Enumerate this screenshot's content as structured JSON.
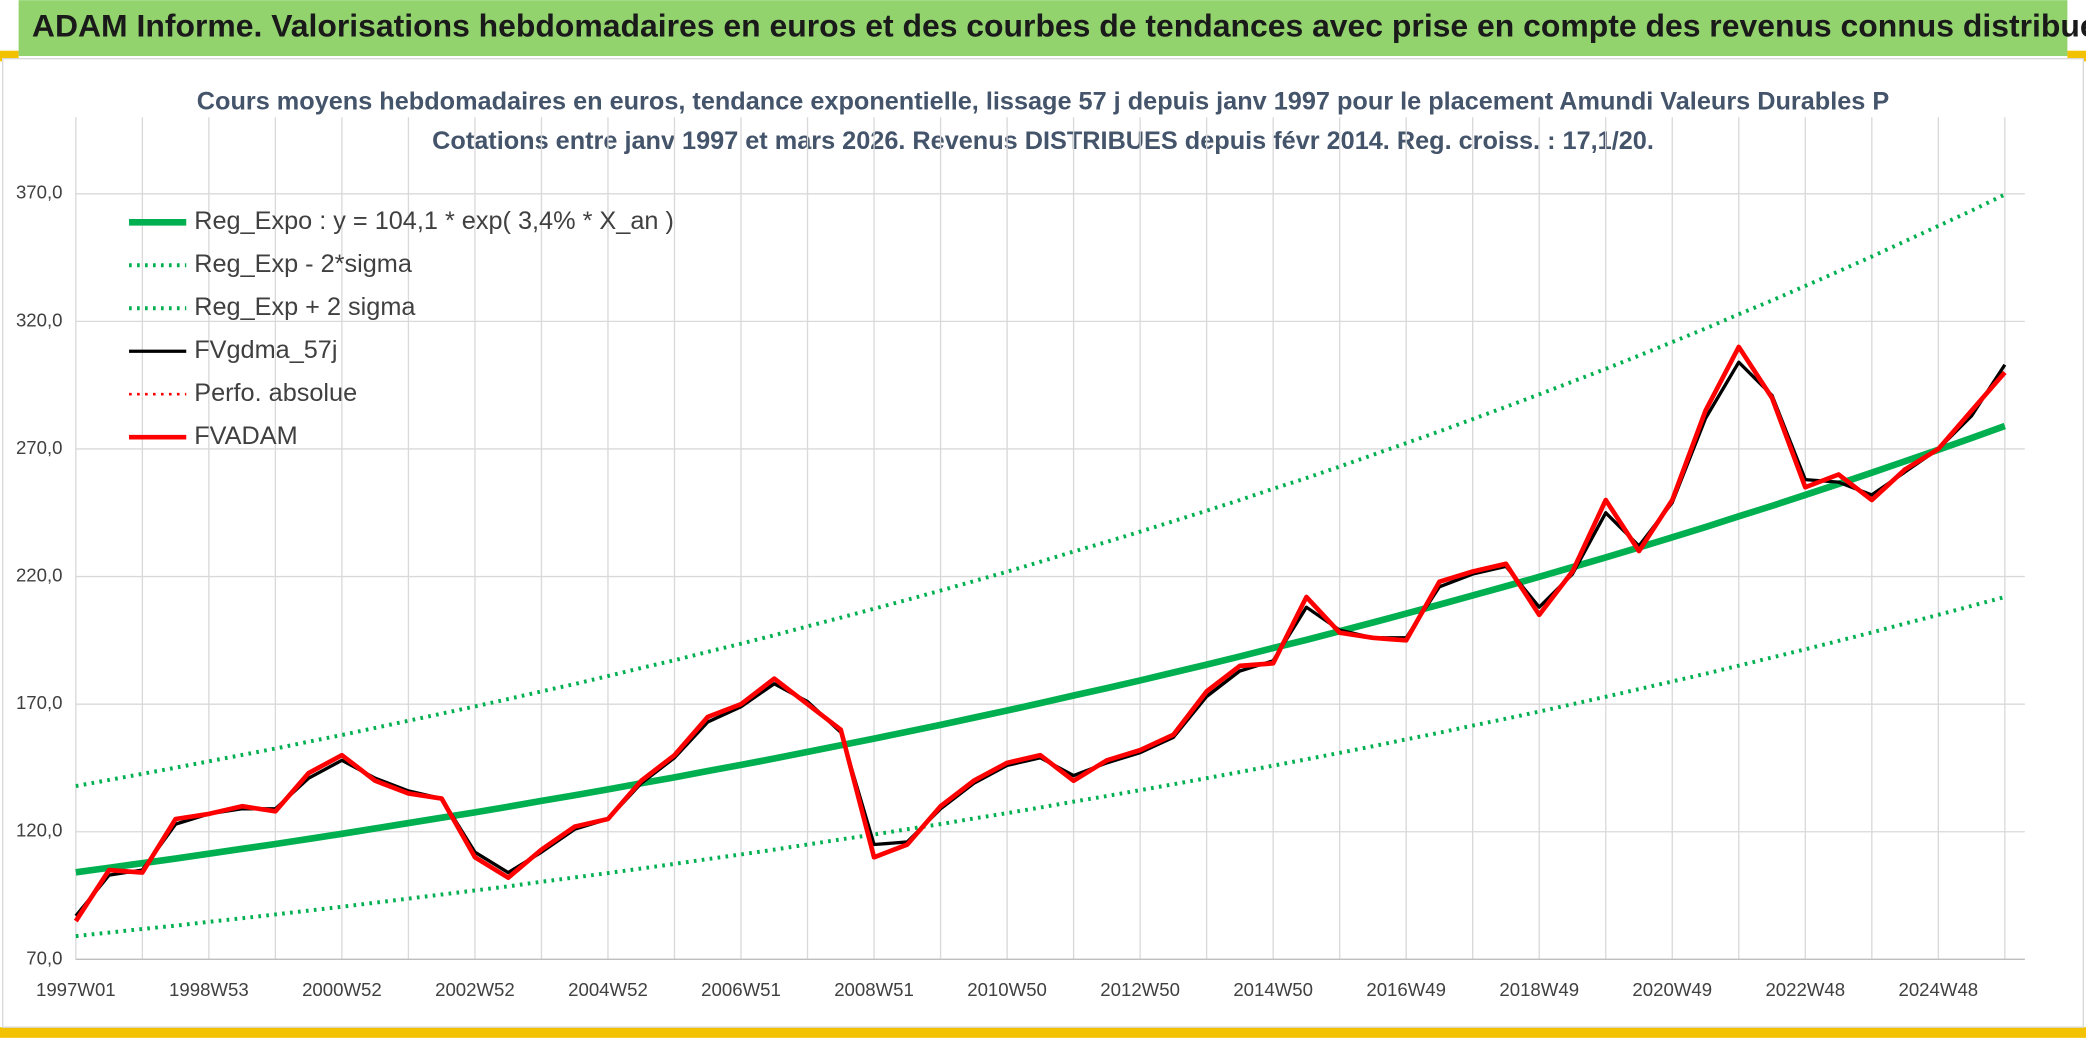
{
  "chart_data": {
    "type": "line",
    "header": "ADAM Informe. Valorisations hebdomadaires en euros et des courbes de tendances avec prise en compte des revenus connus distribués",
    "title": "Cours moyens hebdomadaires en euros, tendance exponentielle, lissage 57 j depuis janv 1997 pour le placement Amundi Valeurs Durables P",
    "subtitle": "Cotations entre janv 1997 et mars 2026. Revenus DISTRIBUES depuis févr 2014. Reg. croiss. : 17,1/20.",
    "categories": [
      "1997W01",
      null,
      null,
      null,
      "1998W53",
      null,
      null,
      null,
      "2000W52",
      null,
      null,
      null,
      "2002W52",
      null,
      null,
      null,
      "2004W52",
      null,
      null,
      null,
      "2006W51",
      null,
      null,
      null,
      "2008W51",
      null,
      null,
      null,
      "2010W50",
      null,
      null,
      null,
      "2012W50",
      null,
      null,
      null,
      "2014W50",
      null,
      null,
      null,
      "2016W49",
      null,
      null,
      null,
      "2018W49",
      null,
      null,
      null,
      "2020W49",
      null,
      null,
      null,
      "2022W48",
      null,
      null,
      null,
      "2024W48",
      null,
      null
    ],
    "ylim": [
      70,
      400
    ],
    "yticks": [
      {
        "value": 70,
        "label": "70,0"
      },
      {
        "value": 120,
        "label": "120,0"
      },
      {
        "value": 170,
        "label": "170,0"
      },
      {
        "value": 220,
        "label": "220,0"
      },
      {
        "value": 270,
        "label": "270,0"
      },
      {
        "value": 320,
        "label": "320,0"
      },
      {
        "value": 370,
        "label": "370,0"
      }
    ],
    "grid": true,
    "legend": "upper left",
    "series": [
      {
        "name": "Reg_Expo : y = 104,1 * exp( 3,4% *  X_an )",
        "color": "#00b050",
        "dash": "solid",
        "width": 5,
        "values": [
          104.1,
          105.9,
          107.7,
          109.5,
          111.4,
          113.3,
          115.2,
          117.2,
          119.2,
          121.3,
          123.4,
          125.5,
          127.6,
          129.8,
          132.1,
          134.3,
          136.6,
          139.0,
          141.3,
          143.8,
          146.2,
          148.7,
          151.3,
          153.9,
          156.5,
          159.2,
          161.9,
          164.7,
          167.5,
          170.4,
          173.4,
          176.3,
          179.3,
          182.4,
          185.5,
          188.7,
          192.0,
          195.2,
          198.6,
          202.0,
          205.5,
          209.0,
          212.6,
          216.2,
          219.9,
          223.7,
          227.5,
          231.4,
          235.4,
          239.4,
          243.6,
          247.7,
          252.0,
          256.3,
          260.7,
          265.2,
          269.7,
          274.3,
          279.0
        ]
      },
      {
        "name": "Reg_Exp - 2*sigma",
        "color": "#00b050",
        "dash": "dotted",
        "width": 3,
        "values": [
          79.1,
          80.5,
          81.9,
          83.2,
          84.7,
          86.1,
          87.6,
          89.1,
          90.6,
          92.2,
          93.8,
          95.4,
          97.0,
          98.6,
          100.4,
          102.1,
          103.8,
          105.6,
          107.4,
          109.3,
          111.1,
          113.0,
          115.0,
          117.0,
          118.9,
          121.0,
          123.0,
          125.2,
          127.3,
          129.5,
          131.8,
          134.0,
          136.3,
          138.6,
          141.0,
          143.4,
          145.9,
          148.4,
          150.9,
          153.5,
          156.2,
          158.8,
          161.6,
          164.3,
          167.1,
          170.0,
          172.9,
          175.9,
          178.9,
          181.9,
          185.1,
          188.3,
          191.5,
          194.8,
          198.1,
          201.6,
          205.0,
          208.5,
          212.0
        ]
      },
      {
        "name": "Reg_Exp + 2 sigma",
        "color": "#00b050",
        "dash": "dotted",
        "width": 3,
        "values": [
          137.9,
          140.3,
          142.7,
          145.1,
          147.6,
          150.1,
          152.6,
          155.3,
          157.9,
          160.7,
          163.5,
          166.3,
          169.1,
          172.0,
          175.0,
          177.9,
          181.0,
          184.2,
          187.2,
          190.5,
          193.7,
          197.0,
          200.5,
          203.9,
          207.4,
          210.9,
          214.5,
          218.2,
          221.9,
          225.8,
          229.8,
          233.6,
          237.6,
          241.7,
          245.8,
          250.0,
          254.4,
          258.6,
          263.1,
          267.7,
          272.3,
          276.9,
          281.7,
          286.5,
          291.4,
          296.4,
          301.4,
          306.6,
          311.9,
          317.2,
          322.8,
          328.2,
          333.9,
          339.6,
          345.4,
          351.4,
          357.4,
          363.4,
          369.7
        ]
      },
      {
        "name": "FVgdma_57j",
        "color": "#000000",
        "dash": "solid",
        "width": 2.5,
        "values": [
          87,
          103,
          105,
          123,
          127,
          129,
          129,
          141,
          148,
          141,
          136,
          133,
          112,
          104,
          112,
          121,
          125,
          139,
          149,
          163,
          169,
          178,
          171,
          159,
          115,
          116,
          129,
          139,
          146,
          149,
          142,
          147,
          151,
          157,
          173,
          183,
          187,
          208,
          199,
          196,
          196,
          216,
          221,
          224,
          208,
          221,
          245,
          232,
          249,
          282,
          304,
          291,
          258,
          257,
          252,
          261,
          270,
          283,
          303
        ]
      },
      {
        "name": "Perfo. absolue",
        "color": "#ff0000",
        "dash": "dotted",
        "width": 2,
        "values": [
          null,
          null,
          null,
          null,
          null,
          null,
          null,
          null,
          null,
          null,
          null,
          null,
          null,
          null,
          null,
          null,
          null,
          null,
          null,
          null,
          null,
          null,
          null,
          null,
          null,
          null,
          null,
          null,
          null,
          null,
          null,
          null,
          null,
          null,
          null,
          null,
          null,
          null,
          null,
          null,
          null,
          null,
          null,
          null,
          null,
          null,
          null,
          null,
          null,
          null,
          null,
          null,
          null,
          null,
          null,
          null,
          null,
          null,
          null
        ]
      },
      {
        "name": "FVADAM",
        "color": "#ff0000",
        "dash": "solid",
        "width": 3.5,
        "values": [
          85,
          105,
          104,
          125,
          127,
          130,
          128,
          143,
          150,
          140,
          135,
          133,
          110,
          102,
          113,
          122,
          125,
          140,
          150,
          165,
          170,
          180,
          170,
          160,
          110,
          115,
          130,
          140,
          147,
          150,
          140,
          148,
          152,
          158,
          175,
          185,
          186,
          212,
          198,
          196,
          195,
          218,
          222,
          225,
          205,
          222,
          250,
          230,
          250,
          285,
          310,
          290,
          255,
          260,
          250,
          262,
          270,
          285,
          300
        ]
      }
    ]
  }
}
